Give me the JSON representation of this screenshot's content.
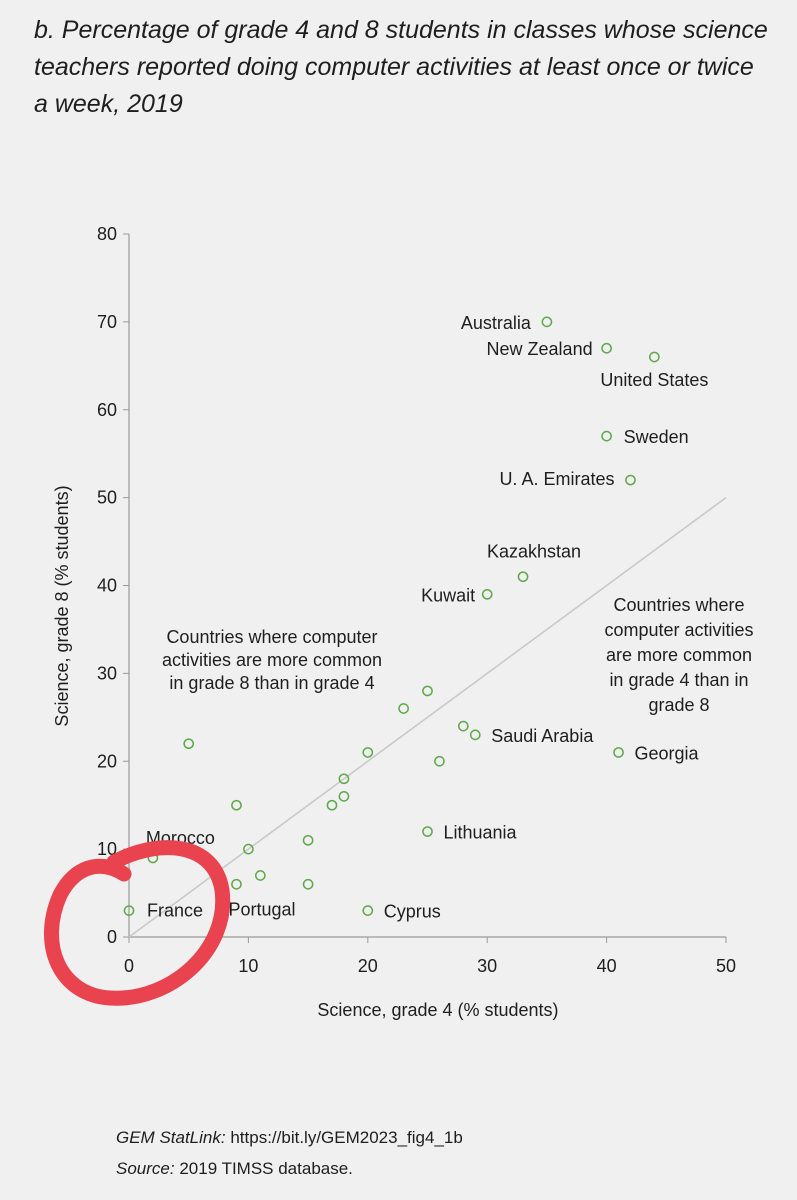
{
  "title": "b. Percentage of grade 4 and 8 students in classes whose science teachers reported doing computer activities at least once or twice a week, 2019",
  "chart_data": {
    "type": "scatter",
    "title": "b. Percentage of grade 4 and 8 students in classes whose science teachers reported doing computer activities at least once or twice a week, 2019",
    "xlabel": "Science, grade 4 (% students)",
    "ylabel": "Science, grade 8 (% students)",
    "xlim": [
      0,
      50
    ],
    "ylim": [
      0,
      80
    ],
    "xticks": [
      "0",
      "10",
      "20",
      "30",
      "40",
      "50"
    ],
    "yticks": [
      "0",
      "10",
      "20",
      "30",
      "40",
      "50",
      "60",
      "70",
      "80"
    ],
    "grid": false,
    "reference_line": "y = x",
    "marker_color": "#5ea84a",
    "line_color": "#c9c9c9",
    "highlight_color": "#e8434f",
    "points": [
      {
        "label": "Australia",
        "x": 35,
        "y": 70
      },
      {
        "label": "New Zealand",
        "x": 40,
        "y": 67
      },
      {
        "label": "United States",
        "x": 44,
        "y": 66
      },
      {
        "label": "Sweden",
        "x": 40,
        "y": 57
      },
      {
        "label": "U. A. Emirates",
        "x": 42,
        "y": 52
      },
      {
        "label": "Kazakhstan",
        "x": 33,
        "y": 41
      },
      {
        "label": "Kuwait",
        "x": 30,
        "y": 39
      },
      {
        "label": "",
        "x": 25,
        "y": 28
      },
      {
        "label": "",
        "x": 23,
        "y": 26
      },
      {
        "label": "",
        "x": 28,
        "y": 24
      },
      {
        "label": "Saudi Arabia",
        "x": 29,
        "y": 23
      },
      {
        "label": "Georgia",
        "x": 41,
        "y": 21
      },
      {
        "label": "",
        "x": 5,
        "y": 22
      },
      {
        "label": "",
        "x": 20,
        "y": 21
      },
      {
        "label": "",
        "x": 26,
        "y": 20
      },
      {
        "label": "",
        "x": 18,
        "y": 18
      },
      {
        "label": "",
        "x": 18,
        "y": 16
      },
      {
        "label": "",
        "x": 17,
        "y": 15
      },
      {
        "label": "",
        "x": 9,
        "y": 15
      },
      {
        "label": "Lithuania",
        "x": 25,
        "y": 12
      },
      {
        "label": "",
        "x": 15,
        "y": 11
      },
      {
        "label": "",
        "x": 10,
        "y": 10
      },
      {
        "label": "Morocco",
        "x": 2,
        "y": 9
      },
      {
        "label": "",
        "x": 11,
        "y": 7
      },
      {
        "label": "Portugal",
        "x": 9,
        "y": 6
      },
      {
        "label": "",
        "x": 15,
        "y": 6
      },
      {
        "label": "France",
        "x": 0,
        "y": 3
      },
      {
        "label": "Cyprus",
        "x": 20,
        "y": 3
      }
    ],
    "annotations": [
      {
        "name": "upper-left-note",
        "lines": [
          "Countries where computer",
          "activities are more common",
          "in grade 8 than in grade 4"
        ]
      },
      {
        "name": "lower-right-note",
        "lines": [
          "Countries where",
          "computer activities",
          "are more common",
          "in grade 4 than in",
          "grade 8"
        ]
      }
    ]
  },
  "footer": {
    "statlink_label": "GEM StatLink:",
    "statlink_url": "https://bit.ly/GEM2023_fig4_1b",
    "source_label": "Source:",
    "source_text": "2019 TIMSS database."
  }
}
